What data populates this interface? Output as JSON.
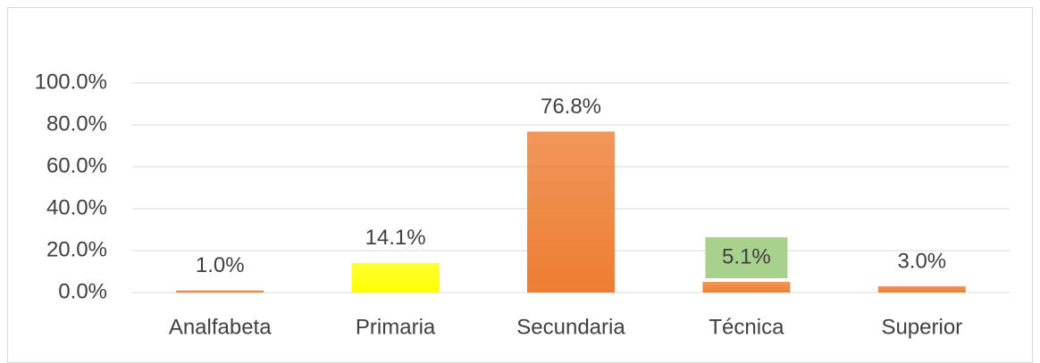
{
  "chart_data": {
    "type": "bar",
    "categories": [
      "Analfabeta",
      "Primaria",
      "Secundaria",
      "Técnica",
      "Superior"
    ],
    "values": [
      1.0,
      14.1,
      76.8,
      5.1,
      3.0
    ],
    "value_labels": [
      "1.0%",
      "14.1%",
      "76.8%",
      "5.1%",
      "3.0%"
    ],
    "colors": [
      "#ed7d31",
      "#ffff00",
      "#ed7d31",
      "#ed7d31",
      "#ed7d31"
    ],
    "value_label_backgrounds": [
      null,
      null,
      null,
      "#a9d18e",
      null
    ],
    "ylim": [
      0,
      100
    ],
    "yticks": [
      {
        "value": 0,
        "label": "0.0%"
      },
      {
        "value": 20,
        "label": "20.0%"
      },
      {
        "value": 40,
        "label": "40.0%"
      },
      {
        "value": 60,
        "label": "60.0%"
      },
      {
        "value": 80,
        "label": "80.0%"
      },
      {
        "value": 100,
        "label": "100.0%"
      }
    ],
    "grid": true
  }
}
